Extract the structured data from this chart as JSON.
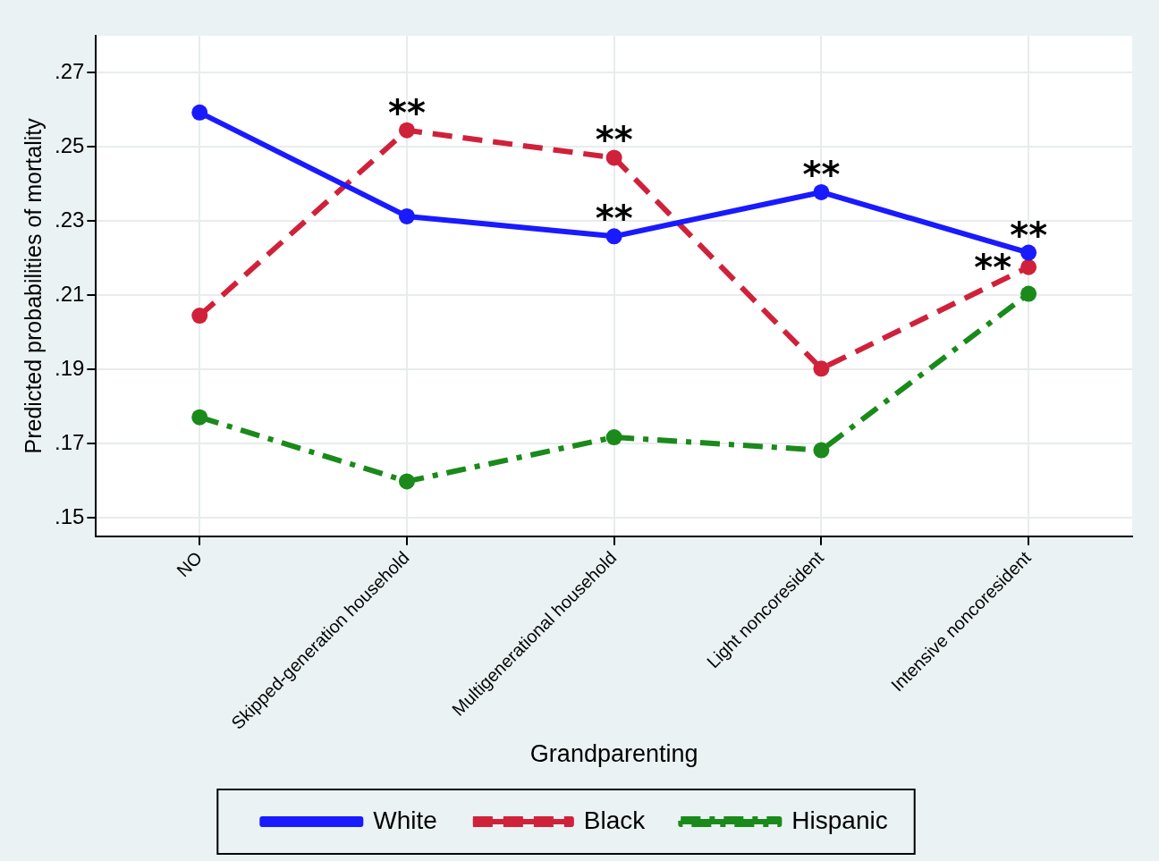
{
  "chart_data": {
    "type": "line",
    "xlabel": "Grandparenting",
    "ylabel": "Predicted probabilities of mortality",
    "categories": [
      "NO",
      "Skipped-generation household",
      "Multigenerational household",
      "Light noncoresident",
      "Intensive noncoresident"
    ],
    "series": [
      {
        "name": "White",
        "color": "#1a1aff",
        "values": [
          0.2593,
          0.2313,
          0.2259,
          0.2378,
          0.2215
        ],
        "line_style": "solid"
      },
      {
        "name": "Black",
        "color": "#d0213b",
        "values": [
          0.2045,
          0.2545,
          0.2471,
          0.1902,
          0.2176
        ],
        "line_style": "dashed"
      },
      {
        "name": "Hispanic",
        "color": "#1a8a1a",
        "values": [
          0.1771,
          0.1598,
          0.1717,
          0.1682,
          0.2104
        ],
        "line_style": "dashdot"
      }
    ],
    "ylim": [
      0.145,
      0.28
    ],
    "yticks": [
      {
        "value": 0.15,
        "label": ".15"
      },
      {
        "value": 0.17,
        "label": ".17"
      },
      {
        "value": 0.19,
        "label": ".19"
      },
      {
        "value": 0.21,
        "label": ".21"
      },
      {
        "value": 0.23,
        "label": ".23"
      },
      {
        "value": 0.25,
        "label": ".25"
      },
      {
        "value": 0.27,
        "label": ".27"
      }
    ],
    "grid": true,
    "marker": "circle",
    "legend": "bottom",
    "annotations": [
      {
        "text": "**",
        "x": "Skipped-generation household",
        "y": 0.2545
      },
      {
        "text": "**",
        "x": "Multigenerational household",
        "y": 0.2471
      },
      {
        "text": "**",
        "x": "Multigenerational household",
        "y": 0.2259
      },
      {
        "text": "**",
        "x": "Light noncoresident",
        "y": 0.2378
      },
      {
        "text": "**",
        "x": "Intensive noncoresident",
        "y": 0.2215
      },
      {
        "text": "**",
        "x": "Intensive noncoresident",
        "y": 0.2176
      }
    ]
  }
}
